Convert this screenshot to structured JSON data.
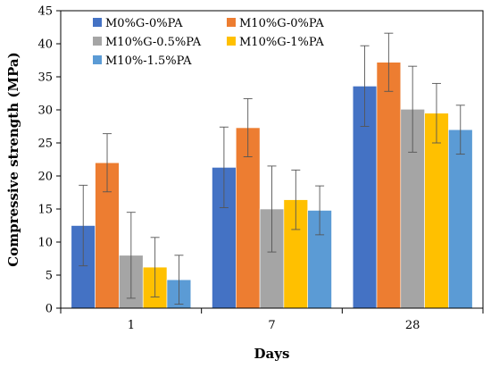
{
  "chart_data": {
    "type": "bar",
    "xlabel": "Days",
    "ylabel": "Compressive strength (MPa)",
    "categories": [
      "1",
      "7",
      "28"
    ],
    "ylim": [
      0,
      45
    ],
    "yticks": [
      0,
      5,
      10,
      15,
      20,
      25,
      30,
      35,
      40,
      45
    ],
    "grid": false,
    "legend_position": "top-left",
    "error_bars": true,
    "series": [
      {
        "name": "M0%G-0%PA",
        "color": "#4472C4",
        "values": [
          12.5,
          21.3,
          33.6
        ],
        "errors": [
          6.1,
          6.1,
          6.1
        ]
      },
      {
        "name": "M10%G-0%PA",
        "color": "#ED7D31",
        "values": [
          22.0,
          27.3,
          37.2
        ],
        "errors": [
          4.4,
          4.4,
          4.4
        ]
      },
      {
        "name": "M10%G-0.5%PA",
        "color": "#A5A5A5",
        "values": [
          8.0,
          15.0,
          30.1
        ],
        "errors": [
          6.5,
          6.5,
          6.5
        ]
      },
      {
        "name": "M10%G-1%PA",
        "color": "#FFC000",
        "values": [
          6.2,
          16.4,
          29.5
        ],
        "errors": [
          4.5,
          4.5,
          4.5
        ]
      },
      {
        "name": "M10%-1.5%PA",
        "color": "#5B9BD5",
        "values": [
          4.3,
          14.8,
          27.0
        ],
        "errors": [
          3.7,
          3.7,
          3.7
        ]
      }
    ]
  }
}
